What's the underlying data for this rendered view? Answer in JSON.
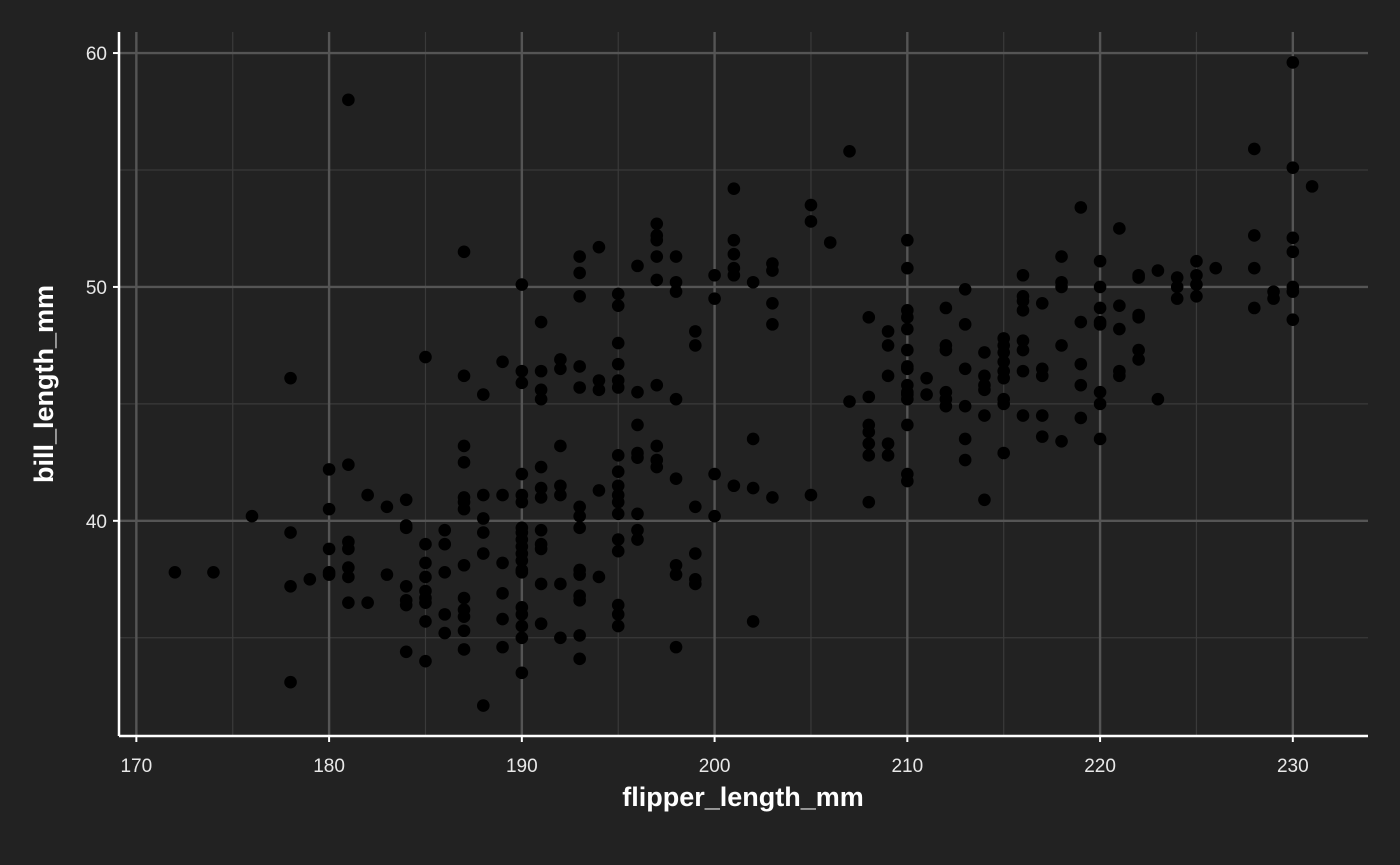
{
  "chart_data": {
    "type": "scatter",
    "title": "",
    "xlabel": "flipper_length_mm",
    "ylabel": "bill_length_mm",
    "xlim": [
      169.1,
      233.9
    ],
    "ylim": [
      30.8,
      60.9
    ],
    "x_ticks": [
      170,
      180,
      190,
      200,
      210,
      220,
      230
    ],
    "y_ticks": [
      40,
      50,
      60
    ],
    "x_minor_grid": [
      175,
      185,
      195,
      205,
      215,
      225
    ],
    "y_minor_grid": [
      35,
      45,
      55
    ],
    "grid": true,
    "legend": "none",
    "colors": {
      "background": "#222222",
      "point": "#000000",
      "major_grid": "#555555",
      "minor_grid": "#3a3a3a",
      "axis": "#ffffff",
      "text": "#e8e8e8"
    },
    "points_by_x": [
      [
        172,
        [
          37.8
        ]
      ],
      [
        174,
        [
          37.8
        ]
      ],
      [
        176,
        [
          40.2
        ]
      ],
      [
        178,
        [
          46.1,
          39.5,
          37.2,
          33.1
        ]
      ],
      [
        179,
        [
          37.5
        ]
      ],
      [
        180,
        [
          42.2,
          40.5,
          38.8,
          37.8,
          37.7
        ]
      ],
      [
        181,
        [
          58.0,
          42.4,
          39.1,
          38.8,
          38.0,
          37.6,
          36.5
        ]
      ],
      [
        182,
        [
          41.1,
          36.5
        ]
      ],
      [
        183,
        [
          40.6,
          37.7
        ]
      ],
      [
        184,
        [
          40.9,
          39.8,
          39.7,
          37.2,
          36.6,
          36.4,
          34.4
        ]
      ],
      [
        185,
        [
          47.0,
          39.0,
          38.2,
          37.6,
          37.0,
          36.7,
          35.7,
          36.5,
          34.0
        ]
      ],
      [
        186,
        [
          39.6,
          39.0,
          37.8,
          36.0,
          35.2
        ]
      ],
      [
        187,
        [
          51.5,
          46.2,
          43.2,
          42.5,
          41.0,
          40.8,
          40.5,
          38.1,
          36.7,
          36.2,
          35.9,
          35.3,
          34.5
        ]
      ],
      [
        188,
        [
          45.4,
          41.1,
          40.1,
          39.5,
          38.6,
          32.1
        ]
      ],
      [
        189,
        [
          46.8,
          41.1,
          38.2,
          36.9,
          35.8,
          34.6
        ]
      ],
      [
        190,
        [
          50.1,
          46.4,
          45.9,
          42.0,
          41.1,
          40.8,
          39.7,
          39.5,
          39.2,
          38.9,
          38.6,
          38.3,
          37.9,
          37.8,
          36.3,
          36.0,
          35.5,
          35.0,
          33.5
        ]
      ],
      [
        191,
        [
          48.5,
          46.4,
          45.6,
          45.2,
          42.3,
          41.4,
          41.0,
          39.6,
          39.0,
          38.8,
          37.3,
          35.6
        ]
      ],
      [
        192,
        [
          46.9,
          46.5,
          43.2,
          41.5,
          41.1,
          37.3,
          35.0
        ]
      ],
      [
        193,
        [
          51.3,
          50.6,
          49.6,
          46.6,
          45.7,
          40.6,
          40.2,
          39.7,
          37.9,
          37.7,
          36.8,
          36.6,
          35.1,
          34.1
        ]
      ],
      [
        194,
        [
          51.7,
          46.0,
          45.6,
          41.3,
          37.6
        ]
      ],
      [
        195,
        [
          49.7,
          49.2,
          47.6,
          46.7,
          46.0,
          45.7,
          42.8,
          42.1,
          41.5,
          41.1,
          40.8,
          40.3,
          39.2,
          38.7,
          36.4,
          36.0,
          35.5
        ]
      ],
      [
        196,
        [
          50.9,
          45.5,
          44.1,
          42.9,
          42.7,
          40.3,
          39.6,
          39.2
        ]
      ],
      [
        197,
        [
          52.7,
          52.2,
          52.0,
          51.3,
          50.3,
          45.8,
          43.2,
          42.6,
          42.3
        ]
      ],
      [
        198,
        [
          51.3,
          50.2,
          49.8,
          45.2,
          41.8,
          38.1,
          37.7,
          34.6
        ]
      ],
      [
        199,
        [
          48.1,
          47.5,
          40.6,
          38.6,
          37.5,
          37.3
        ]
      ],
      [
        200,
        [
          50.5,
          49.5,
          42.0,
          40.2
        ]
      ],
      [
        201,
        [
          54.2,
          52.0,
          51.4,
          50.8,
          50.5,
          41.5
        ]
      ],
      [
        202,
        [
          50.2,
          43.5,
          41.4,
          35.7
        ]
      ],
      [
        203,
        [
          51.0,
          50.7,
          49.3,
          48.4,
          41.0
        ]
      ],
      [
        205,
        [
          53.5,
          52.8,
          41.1
        ]
      ],
      [
        206,
        [
          51.9
        ]
      ],
      [
        207,
        [
          55.8,
          45.1
        ]
      ],
      [
        208,
        [
          48.7,
          45.3,
          44.1,
          43.8,
          43.3,
          42.8,
          40.8
        ]
      ],
      [
        209,
        [
          48.1,
          47.5,
          46.2,
          43.3,
          42.8
        ]
      ],
      [
        210,
        [
          52.0,
          50.8,
          49.0,
          48.7,
          48.2,
          47.3,
          46.6,
          46.5,
          45.8,
          45.5,
          45.4,
          45.2,
          44.1,
          42.0,
          41.7
        ]
      ],
      [
        211,
        [
          46.1,
          45.4
        ]
      ],
      [
        212,
        [
          49.1,
          47.5,
          47.3,
          45.5,
          45.2,
          44.9
        ]
      ],
      [
        213,
        [
          49.9,
          48.4,
          46.5,
          44.9,
          43.5,
          42.6
        ]
      ],
      [
        214,
        [
          47.2,
          46.2,
          45.8,
          45.6,
          44.5,
          40.9
        ]
      ],
      [
        215,
        [
          47.8,
          47.5,
          47.2,
          46.8,
          46.4,
          46.1,
          45.2,
          45.0,
          42.9
        ]
      ],
      [
        216,
        [
          50.5,
          49.6,
          49.4,
          49.0,
          47.7,
          47.3,
          46.4,
          44.5
        ]
      ],
      [
        217,
        [
          49.3,
          46.5,
          46.2,
          44.5,
          43.6
        ]
      ],
      [
        218,
        [
          51.3,
          50.2,
          50.0,
          47.5,
          43.4
        ]
      ],
      [
        219,
        [
          53.4,
          48.5,
          46.7,
          45.8,
          44.4
        ]
      ],
      [
        220,
        [
          51.1,
          50.0,
          49.1,
          48.5,
          48.4,
          45.5,
          45.0,
          43.5
        ]
      ],
      [
        221,
        [
          52.5,
          49.2,
          48.2,
          46.4,
          46.2
        ]
      ],
      [
        222,
        [
          50.5,
          50.4,
          48.8,
          48.7,
          47.3,
          46.9
        ]
      ],
      [
        223,
        [
          50.7,
          45.2
        ]
      ],
      [
        224,
        [
          50.4,
          50.0,
          49.5
        ]
      ],
      [
        225,
        [
          51.1,
          50.5,
          50.1,
          49.6
        ]
      ],
      [
        226,
        [
          50.8
        ]
      ],
      [
        228,
        [
          55.9,
          52.2,
          50.8,
          49.1
        ]
      ],
      [
        229,
        [
          49.8,
          49.5
        ]
      ],
      [
        230,
        [
          59.6,
          55.1,
          52.1,
          51.5,
          50.0,
          49.8,
          48.6
        ]
      ],
      [
        231,
        [
          54.3
        ]
      ]
    ]
  }
}
